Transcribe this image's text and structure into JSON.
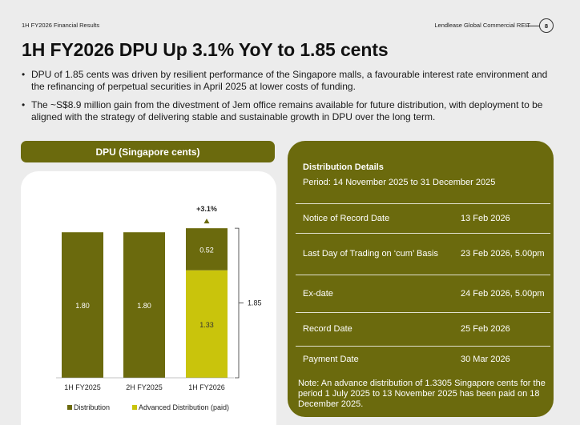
{
  "header": {
    "section": "1H FY2026 Financial Results",
    "company": "Lendlease Global Commercial REIT",
    "page_number": "8"
  },
  "title": "1H FY2026 DPU Up 3.1% YoY to 1.85 cents",
  "bullets": [
    "DPU of 1.85 cents was driven by resilient performance of the Singapore malls, a favourable interest rate environment and the refinancing of perpetual securities in April 2025 at lower costs of funding.",
    "The ~S$8.9 million gain from the divestment of Jem office remains available for future distribution, with deployment to be aligned with the strategy of delivering stable and sustainable growth in DPU over the long term."
  ],
  "chart_data": {
    "type": "bar",
    "title": "DPU (Singapore cents)",
    "categories": [
      "1H FY2025",
      "2H FY2025",
      "1H FY2026"
    ],
    "series": [
      {
        "name": "Distribution",
        "values": [
          1.8,
          1.8,
          0.52
        ]
      },
      {
        "name": "Advanced Distribution (paid)",
        "values": [
          0,
          0,
          1.33
        ]
      }
    ],
    "data_labels": [
      {
        "category": "1H FY2025",
        "series": "Distribution",
        "label": "1.80"
      },
      {
        "category": "2H FY2025",
        "series": "Distribution",
        "label": "1.80"
      },
      {
        "category": "1H FY2026",
        "series": "Distribution",
        "label": "0.52"
      },
      {
        "category": "1H FY2026",
        "series": "Advanced Distribution (paid)",
        "label": "1.33"
      }
    ],
    "total_label": "1.85",
    "growth_label": "+3.1%",
    "ylim": [
      0,
      2.0
    ],
    "grid": false,
    "legend_position": "bottom"
  },
  "colors": {
    "olive": "#6b6a0d",
    "lime": "#c9c40c",
    "background": "#ececec"
  },
  "distribution": {
    "heading": "Distribution Details",
    "period": "Period: 14 November 2025 to 31 December 2025",
    "rows": [
      {
        "label": "Notice of Record Date",
        "value": "13 Feb 2026"
      },
      {
        "label": "Last Day of Trading on ‘cum’ Basis",
        "value": "23 Feb 2026, 5.00pm"
      },
      {
        "label": "Ex-date",
        "value": "24 Feb 2026, 5.00pm"
      },
      {
        "label": "Record Date",
        "value": "25 Feb 2026"
      },
      {
        "label": "Payment Date",
        "value": "30 Mar 2026"
      }
    ],
    "note": "Note: An advance distribution of 1.3305 Singapore cents for the period 1 July 2025 to 13 November 2025 has been paid on 18 December 2025."
  }
}
